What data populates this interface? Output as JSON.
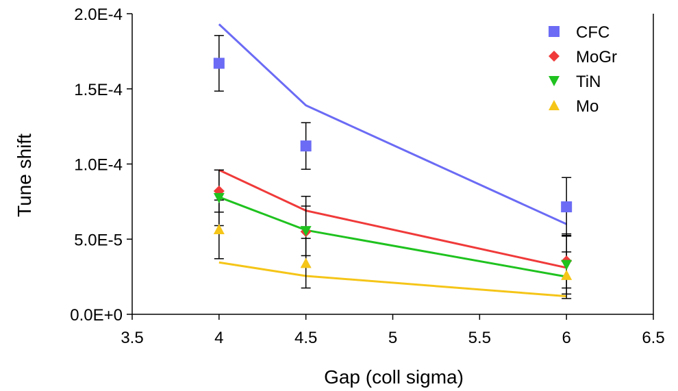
{
  "chart_data": {
    "type": "scatter",
    "title": "",
    "xlabel": "Gap (coll sigma)",
    "ylabel": "Tune shift",
    "xlim": [
      3.5,
      6.5
    ],
    "ylim": [
      0,
      0.0002
    ],
    "x_ticks": [
      {
        "value": 3.5,
        "label": "3.5"
      },
      {
        "value": 4,
        "label": "4"
      },
      {
        "value": 4.5,
        "label": "4.5"
      },
      {
        "value": 5,
        "label": "5"
      },
      {
        "value": 5.5,
        "label": "5.5"
      },
      {
        "value": 6,
        "label": "6"
      },
      {
        "value": 6.5,
        "label": "6.5"
      }
    ],
    "y_ticks": [
      {
        "value": 0,
        "label": "0.0E+0"
      },
      {
        "value": 5e-05,
        "label": "5.0E-5"
      },
      {
        "value": 0.0001,
        "label": "1.0E-4"
      },
      {
        "value": 0.00015,
        "label": "1.5E-4"
      },
      {
        "value": 0.0002,
        "label": "2.0E-4"
      }
    ],
    "grid": false,
    "legend_position": "top-right",
    "series": [
      {
        "name": "CFC",
        "marker": "square",
        "color": "#6b6bf5",
        "points": [
          {
            "x": 4,
            "y": 0.000167,
            "err": 1.85e-05
          },
          {
            "x": 4.5,
            "y": 0.000112,
            "err": 1.55e-05
          },
          {
            "x": 6,
            "y": 7.15e-05,
            "err": 1.95e-05
          }
        ],
        "model": [
          {
            "x": 4,
            "y": 0.000193
          },
          {
            "x": 4.5,
            "y": 0.000139
          },
          {
            "x": 6,
            "y": 6e-05
          }
        ]
      },
      {
        "name": "MoGr",
        "marker": "diamond",
        "color": "#f03a3a",
        "points": [
          {
            "x": 4,
            "y": 8.2e-05,
            "err": 1.4e-05
          },
          {
            "x": 4.5,
            "y": 5.5e-05,
            "err": 2.35e-05
          },
          {
            "x": 6,
            "y": 3.55e-05,
            "err": 1.8e-05
          }
        ],
        "model": [
          {
            "x": 4,
            "y": 9.6e-05
          },
          {
            "x": 4.5,
            "y": 6.9e-05
          },
          {
            "x": 6,
            "y": 3.1e-05
          }
        ]
      },
      {
        "name": "TiN",
        "marker": "triangle-down",
        "color": "#1fc21f",
        "points": [
          {
            "x": 4,
            "y": 7.75e-05,
            "err": 1.85e-05
          },
          {
            "x": 4.5,
            "y": 5.55e-05,
            "err": 1.65e-05
          },
          {
            "x": 6,
            "y": 3.3e-05,
            "err": 1.95e-05
          }
        ],
        "model": [
          {
            "x": 4,
            "y": 7.8e-05
          },
          {
            "x": 4.5,
            "y": 5.6e-05
          },
          {
            "x": 6,
            "y": 2.5e-05
          }
        ]
      },
      {
        "name": "Mo",
        "marker": "triangle-up",
        "color": "#f5c518",
        "points": [
          {
            "x": 4,
            "y": 5.65e-05,
            "err": 1.95e-05
          },
          {
            "x": 4.5,
            "y": 3.4e-05,
            "err": 1.65e-05
          },
          {
            "x": 6,
            "y": 2.6e-05,
            "err": 1.55e-05
          }
        ],
        "model": [
          {
            "x": 4,
            "y": 3.45e-05
          },
          {
            "x": 4.5,
            "y": 2.55e-05
          },
          {
            "x": 6,
            "y": 1.2e-05
          }
        ]
      }
    ]
  }
}
